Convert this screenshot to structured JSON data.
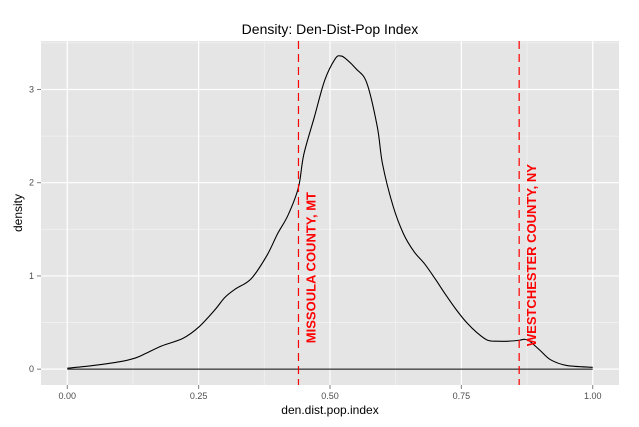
{
  "chart_data": {
    "type": "line",
    "title": "Density: Den-Dist-Pop Index",
    "xlabel": "den.dist.pop.index",
    "ylabel": "density",
    "xlim": [
      -0.05,
      1.05
    ],
    "ylim": [
      -0.17,
      3.52
    ],
    "x_ticks": [
      0.0,
      0.25,
      0.5,
      0.75,
      1.0
    ],
    "x_tick_labels": [
      "0.00",
      "0.25",
      "0.50",
      "0.75",
      "1.00"
    ],
    "y_ticks": [
      0,
      1,
      2,
      3
    ],
    "y_tick_labels": [
      "0",
      "1",
      "2",
      "3"
    ],
    "grid": true,
    "panel_background": "#e5e5e5",
    "grid_color": "#ffffff",
    "line_color": "#000000",
    "series": [
      {
        "x": [
          0.0,
          0.05,
          0.1,
          0.13,
          0.15,
          0.18,
          0.22,
          0.25,
          0.28,
          0.3,
          0.32,
          0.35,
          0.38,
          0.4,
          0.42,
          0.44,
          0.45,
          0.47,
          0.49,
          0.51,
          0.52,
          0.53,
          0.55,
          0.57,
          0.59,
          0.6,
          0.62,
          0.64,
          0.66,
          0.68,
          0.7,
          0.72,
          0.74,
          0.76,
          0.78,
          0.8,
          0.82,
          0.84,
          0.86,
          0.87,
          0.88,
          0.9,
          0.92,
          0.95,
          1.0
        ],
        "y": [
          0.01,
          0.04,
          0.08,
          0.12,
          0.17,
          0.25,
          0.33,
          0.45,
          0.63,
          0.77,
          0.86,
          0.97,
          1.22,
          1.45,
          1.65,
          1.95,
          2.3,
          2.7,
          3.1,
          3.33,
          3.36,
          3.33,
          3.22,
          3.07,
          2.6,
          2.2,
          1.75,
          1.45,
          1.26,
          1.13,
          0.97,
          0.8,
          0.64,
          0.5,
          0.39,
          0.31,
          0.3,
          0.3,
          0.31,
          0.32,
          0.3,
          0.2,
          0.1,
          0.04,
          0.02
        ]
      }
    ],
    "baseline": 0,
    "reference_lines": [
      {
        "x": 0.44,
        "label": "MISSOULA COUNTY, MT",
        "color": "#ff0000",
        "label_y": 1.9
      },
      {
        "x": 0.86,
        "label": "WESTCHESTER COUNTY, NY",
        "color": "#ff0000",
        "label_y": 2.2
      }
    ]
  }
}
